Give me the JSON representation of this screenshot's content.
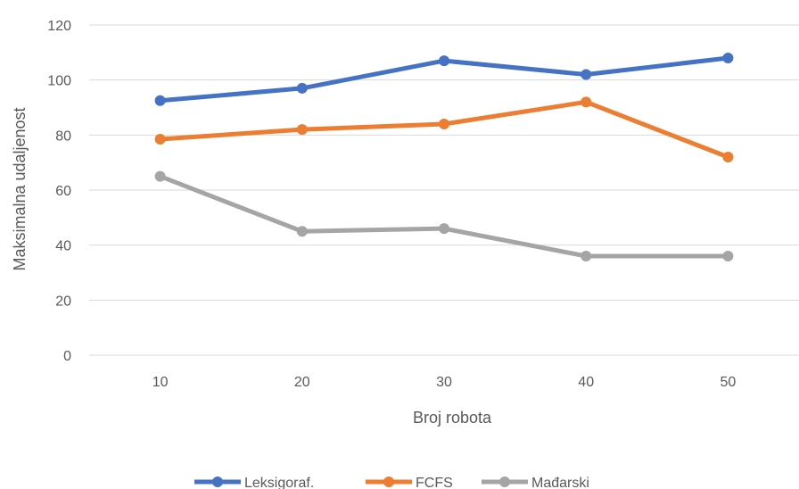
{
  "chart_data": {
    "type": "line",
    "title": "",
    "xlabel": "Broj robota",
    "ylabel": "Maksimalna udaljenost",
    "categories": [
      "10",
      "20",
      "30",
      "40",
      "50"
    ],
    "ylim": [
      0,
      120
    ],
    "yticks": [
      "0",
      "20",
      "40",
      "60",
      "80",
      "100",
      "120"
    ],
    "grid": true,
    "legend_position": "bottom",
    "series": [
      {
        "name": "Leksigoraf.",
        "color": "#4472c4",
        "values": [
          92.5,
          97,
          107,
          102,
          108
        ]
      },
      {
        "name": "FCFS",
        "color": "#ed7d31",
        "values": [
          78.5,
          82,
          84,
          92,
          72
        ]
      },
      {
        "name": "Mađarski",
        "color": "#a5a5a5",
        "values": [
          65,
          45,
          46,
          36,
          36
        ]
      }
    ]
  }
}
